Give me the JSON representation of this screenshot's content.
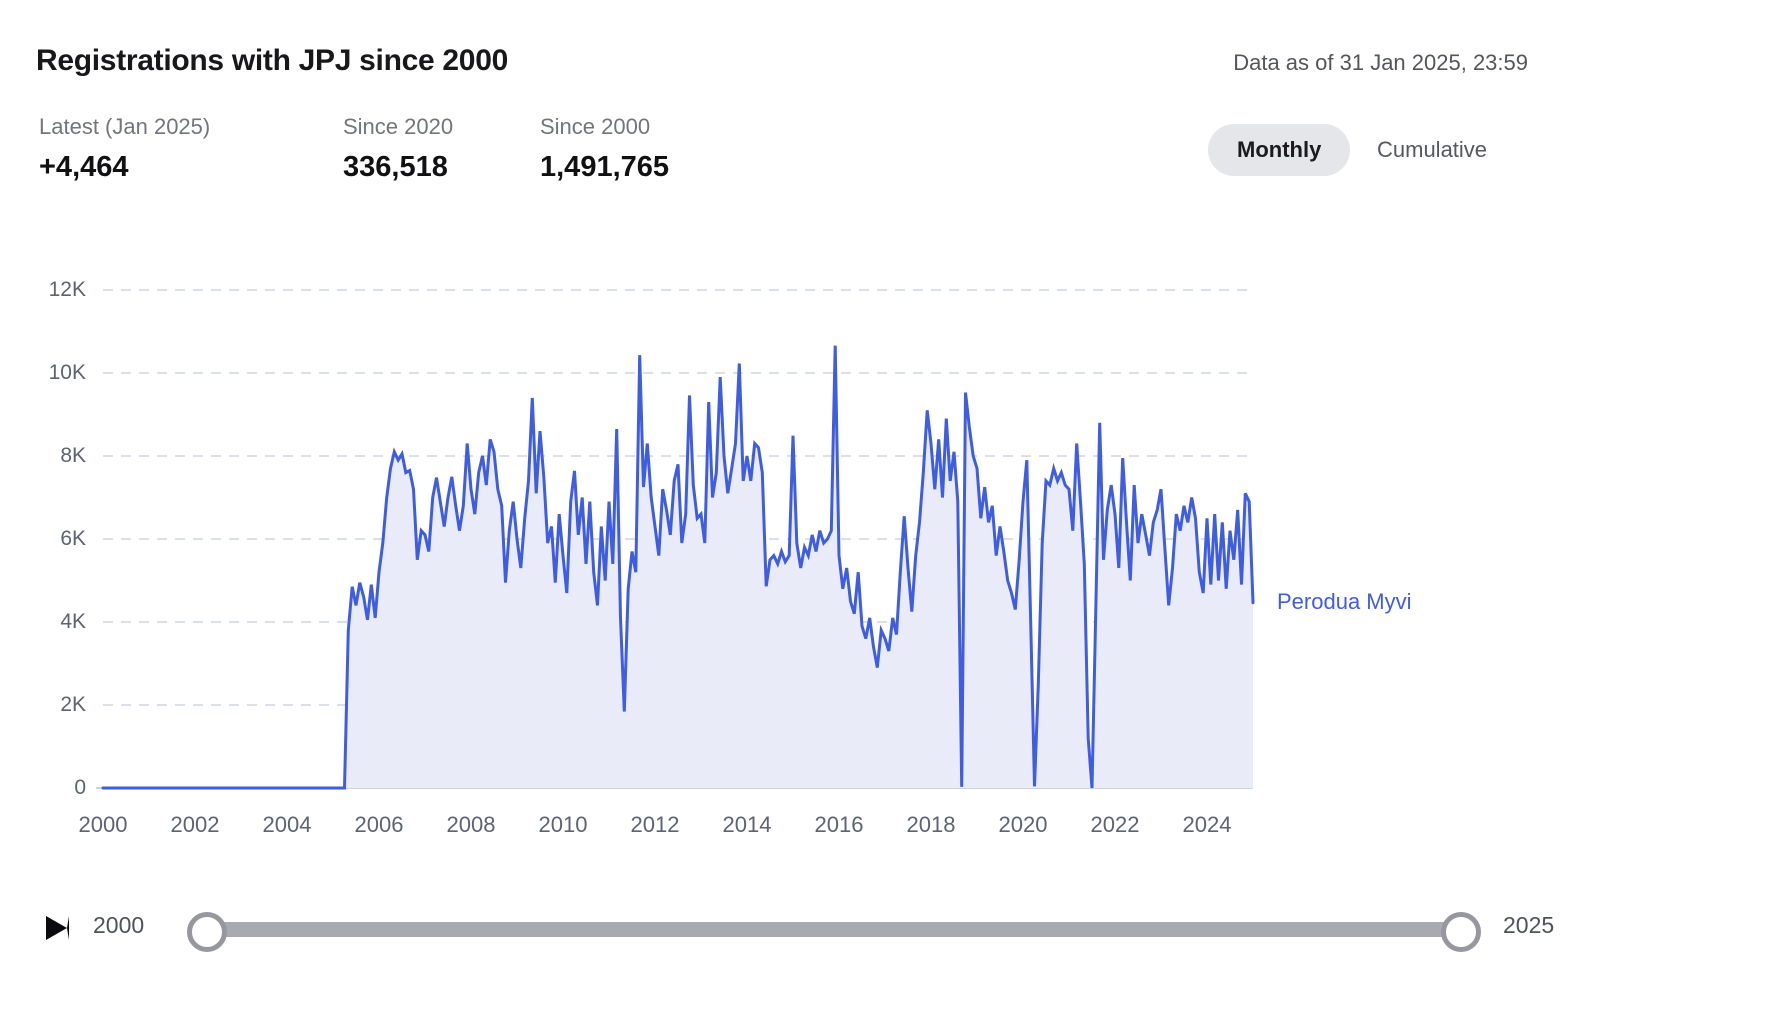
{
  "header": {
    "title": "Registrations with JPJ since 2000",
    "data_as_of": "Data as of 31 Jan 2025, 23:59"
  },
  "stats": [
    {
      "label": "Latest (Jan 2025)",
      "value": "+4,464"
    },
    {
      "label": "Since 2020",
      "value": "336,518"
    },
    {
      "label": "Since 2000",
      "value": "1,491,765"
    }
  ],
  "toggle": {
    "options": [
      "Monthly",
      "Cumulative"
    ],
    "selected": "Monthly"
  },
  "chart_data": {
    "type": "area",
    "title": "Registrations with JPJ since 2000",
    "series_label": "Perodua Myvi",
    "x_start": "2000-01",
    "x_end": "2025-01",
    "x_interval": "monthly",
    "ylim": [
      0,
      12000
    ],
    "y_ticks": [
      "0",
      "2K",
      "4K",
      "6K",
      "8K",
      "10K",
      "12K"
    ],
    "x_ticks": [
      "2000",
      "2002",
      "2004",
      "2006",
      "2008",
      "2010",
      "2012",
      "2014",
      "2016",
      "2018",
      "2020",
      "2022",
      "2024"
    ],
    "grid": "dashed-horizontal",
    "legend_position": "right-of-line-end",
    "line_color": "#3f5de1",
    "fill_color": "#e9ecf8",
    "values": [
      0,
      0,
      0,
      0,
      0,
      0,
      0,
      0,
      0,
      0,
      0,
      0,
      0,
      0,
      0,
      0,
      0,
      0,
      0,
      0,
      0,
      0,
      0,
      0,
      0,
      0,
      0,
      0,
      0,
      0,
      0,
      0,
      0,
      0,
      0,
      0,
      0,
      0,
      0,
      0,
      0,
      0,
      0,
      0,
      0,
      0,
      0,
      0,
      0,
      0,
      0,
      0,
      0,
      0,
      0,
      0,
      0,
      0,
      0,
      0,
      0,
      0,
      0,
      0,
      3800,
      4850,
      4400,
      4950,
      4600,
      4050,
      4900,
      4100,
      5200,
      5900,
      7000,
      7700,
      8100,
      7900,
      8050,
      7600,
      7650,
      7200,
      5500,
      6200,
      6100,
      5700,
      7000,
      7480,
      6900,
      6300,
      7000,
      7500,
      6800,
      6200,
      6800,
      8300,
      7200,
      6600,
      7600,
      8000,
      7300,
      8400,
      8100,
      7200,
      6800,
      4950,
      6200,
      6900,
      6000,
      5300,
      6500,
      7400,
      9400,
      7100,
      8600,
      7500,
      5900,
      6300,
      4950,
      6600,
      5600,
      4700,
      6900,
      7640,
      6100,
      7000,
      5400,
      6900,
      5200,
      4400,
      6300,
      5000,
      6900,
      5400,
      8650,
      4100,
      1840,
      4800,
      5700,
      5200,
      10430,
      7250,
      8300,
      7000,
      6300,
      5600,
      7200,
      6700,
      6100,
      7400,
      7800,
      5900,
      6600,
      9460,
      7300,
      6500,
      6600,
      5900,
      9300,
      7000,
      7600,
      9900,
      8000,
      7100,
      7700,
      8300,
      10230,
      7400,
      8000,
      7400,
      8300,
      8200,
      7600,
      4860,
      5500,
      5600,
      5400,
      5700,
      5450,
      5600,
      8490,
      5900,
      5300,
      5800,
      5600,
      6100,
      5700,
      6200,
      5900,
      6000,
      6200,
      10660,
      5600,
      4800,
      5300,
      4500,
      4200,
      5200,
      3900,
      3600,
      4100,
      3400,
      2900,
      3800,
      3600,
      3300,
      4100,
      3700,
      5200,
      6550,
      5300,
      4250,
      5600,
      6400,
      7600,
      9100,
      8300,
      7200,
      8400,
      7000,
      8900,
      7400,
      8100,
      6900,
      30,
      9530,
      8700,
      8000,
      7700,
      6500,
      7250,
      6400,
      6800,
      5600,
      6300,
      5700,
      5000,
      4700,
      4300,
      5500,
      6900,
      7900,
      4000,
      40,
      2500,
      5900,
      7400,
      7300,
      7700,
      7400,
      7600,
      7300,
      7200,
      6200,
      8300,
      6900,
      5400,
      1200,
      0,
      4300,
      8800,
      5500,
      6700,
      7300,
      6600,
      5300,
      7950,
      6400,
      5000,
      7300,
      5900,
      6600,
      6100,
      5600,
      6400,
      6700,
      7200,
      5800,
      4400,
      5300,
      6600,
      6200,
      6800,
      6400,
      7000,
      6500,
      5200,
      4700,
      6500,
      4900,
      6600,
      5000,
      6400,
      4800,
      6200,
      5500,
      6700,
      4900,
      7100,
      6900,
      4464
    ]
  },
  "slider": {
    "start_label": "2000",
    "end_label": "2025"
  }
}
